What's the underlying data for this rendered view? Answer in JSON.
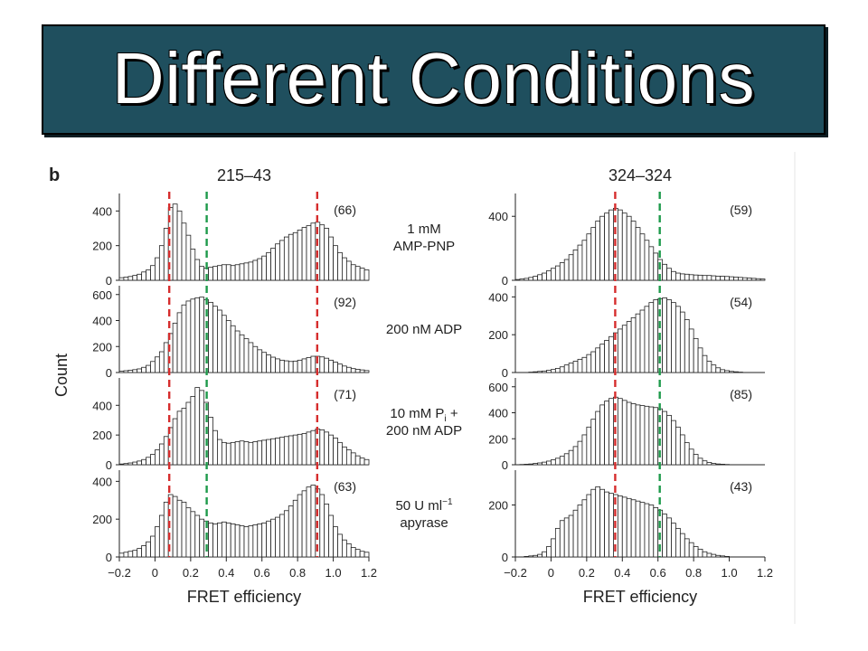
{
  "slide": {
    "title": "Different Conditions"
  },
  "chart_data": {
    "type": "bar",
    "panel_letter": "b",
    "xlabel": "FRET efficiency",
    "ylabel": "Count",
    "x_ticks": [
      "−0.2",
      "0",
      "0.2",
      "0.4",
      "0.6",
      "0.8",
      "1.0",
      "1.2"
    ],
    "xlim": [
      -0.2,
      1.2
    ],
    "bin_width": 0.025,
    "colors": {
      "bars_fill": "#ffffff",
      "bars_stroke": "#222222",
      "red_line": "#d62d2d",
      "green_line": "#1e9a4b",
      "banner": "#1f4f5e"
    },
    "conditions": [
      {
        "line1": "1 mM",
        "line2": "AMP-PNP",
        "sub": ""
      },
      {
        "line1": "200 nM ADP",
        "line2": "",
        "sub": ""
      },
      {
        "line1": "10 mM P",
        "sub": "i",
        "line1_suffix": " +",
        "line2": "200 nM ADP"
      },
      {
        "line1": "50 U ml",
        "sup": "−1",
        "line2": "apyrase",
        "sub": ""
      }
    ],
    "columns": [
      {
        "title": "215–43",
        "red_lines": [
          0.08,
          0.91
        ],
        "green_lines": [
          0.29
        ],
        "panels": [
          {
            "count_label": "(66)",
            "ylim": [
              0,
              480
            ],
            "y_ticks": [
              {
                "v": 0,
                "t": "0"
              },
              {
                "v": 200,
                "t": "200"
              },
              {
                "v": 400,
                "t": "400"
              }
            ],
            "values": [
              15,
              18,
              22,
              28,
              35,
              48,
              60,
              85,
              130,
              200,
              300,
              420,
              440,
              400,
              330,
              260,
              180,
              120,
              80,
              70,
              75,
              80,
              85,
              90,
              90,
              85,
              90,
              95,
              100,
              105,
              115,
              125,
              140,
              160,
              185,
              210,
              230,
              250,
              265,
              275,
              290,
              305,
              315,
              330,
              335,
              320,
              300,
              250,
              200,
              160,
              130,
              110,
              90,
              80,
              70,
              60
            ]
          },
          {
            "count_label": "(92)",
            "ylim": [
              0,
              640
            ],
            "y_ticks": [
              {
                "v": 0,
                "t": "0"
              },
              {
                "v": 200,
                "t": "200"
              },
              {
                "v": 400,
                "t": "400"
              },
              {
                "v": 600,
                "t": "600"
              }
            ],
            "values": [
              10,
              14,
              18,
              22,
              28,
              40,
              55,
              85,
              120,
              160,
              230,
              300,
              380,
              460,
              520,
              550,
              565,
              575,
              580,
              560,
              540,
              510,
              480,
              440,
              400,
              360,
              320,
              290,
              260,
              230,
              200,
              175,
              155,
              135,
              118,
              105,
              95,
              90,
              85,
              88,
              95,
              105,
              115,
              125,
              125,
              120,
              110,
              95,
              80,
              65,
              50,
              40,
              30,
              25,
              20,
              15
            ]
          },
          {
            "count_label": "(71)",
            "ylim": [
              0,
              560
            ],
            "y_ticks": [
              {
                "v": 0,
                "t": "0"
              },
              {
                "v": 200,
                "t": "200"
              },
              {
                "v": 400,
                "t": "400"
              }
            ],
            "values": [
              5,
              8,
              12,
              18,
              25,
              35,
              50,
              70,
              100,
              140,
              190,
              250,
              310,
              360,
              380,
              420,
              460,
              520,
              500,
              420,
              320,
              230,
              170,
              150,
              145,
              150,
              155,
              160,
              155,
              150,
              155,
              160,
              165,
              170,
              175,
              180,
              185,
              190,
              195,
              200,
              205,
              210,
              220,
              230,
              240,
              235,
              220,
              200,
              180,
              150,
              120,
              100,
              80,
              60,
              45,
              35
            ]
          },
          {
            "count_label": "(63)",
            "ylim": [
              0,
              440
            ],
            "y_ticks": [
              {
                "v": 0,
                "t": "0"
              },
              {
                "v": 200,
                "t": "200"
              },
              {
                "v": 400,
                "t": "400"
              }
            ],
            "values": [
              20,
              25,
              30,
              35,
              45,
              60,
              80,
              110,
              160,
              220,
              290,
              330,
              320,
              300,
              290,
              260,
              240,
              220,
              200,
              190,
              180,
              175,
              180,
              185,
              180,
              175,
              170,
              165,
              160,
              165,
              170,
              175,
              180,
              190,
              200,
              210,
              225,
              245,
              270,
              300,
              330,
              350,
              370,
              380,
              360,
              330,
              280,
              220,
              160,
              120,
              90,
              70,
              50,
              40,
              30,
              25
            ]
          }
        ]
      },
      {
        "title": "324–324",
        "red_lines": [
          0.36
        ],
        "green_lines": [
          0.61
        ],
        "panels": [
          {
            "count_label": "(59)",
            "ylim": [
              0,
              520
            ],
            "y_ticks": [
              {
                "v": 0,
                "t": "0"
              },
              {
                "v": 400,
                "t": "400"
              }
            ],
            "values": [
              5,
              8,
              12,
              18,
              25,
              35,
              45,
              60,
              75,
              90,
              110,
              130,
              160,
              190,
              220,
              250,
              290,
              330,
              370,
              400,
              420,
              440,
              450,
              440,
              420,
              400,
              370,
              330,
              290,
              250,
              210,
              170,
              130,
              100,
              75,
              55,
              45,
              40,
              38,
              35,
              33,
              32,
              30,
              30,
              28,
              26,
              25,
              24,
              22,
              20,
              18,
              16,
              14,
              12,
              10,
              8
            ]
          },
          {
            "count_label": "(54)",
            "ylim": [
              0,
              440
            ],
            "y_ticks": [
              {
                "v": 0,
                "t": "0"
              },
              {
                "v": 200,
                "t": "200"
              },
              {
                "v": 400,
                "t": "400"
              }
            ],
            "values": [
              0,
              0,
              0,
              2,
              4,
              6,
              8,
              12,
              16,
              22,
              30,
              40,
              50,
              60,
              70,
              80,
              95,
              110,
              130,
              150,
              170,
              190,
              210,
              230,
              250,
              270,
              290,
              310,
              330,
              350,
              370,
              385,
              390,
              395,
              385,
              370,
              350,
              320,
              280,
              230,
              180,
              130,
              90,
              60,
              40,
              25,
              15,
              10,
              6,
              4,
              2,
              0,
              0,
              0,
              0,
              0
            ]
          },
          {
            "count_label": "(85)",
            "ylim": [
              0,
              640
            ],
            "y_ticks": [
              {
                "v": 0,
                "t": "0"
              },
              {
                "v": 200,
                "t": "200"
              },
              {
                "v": 400,
                "t": "400"
              },
              {
                "v": 600,
                "t": "600"
              }
            ],
            "values": [
              0,
              2,
              4,
              6,
              10,
              14,
              20,
              28,
              38,
              50,
              65,
              85,
              110,
              140,
              180,
              230,
              290,
              350,
              410,
              460,
              490,
              510,
              520,
              510,
              495,
              480,
              470,
              460,
              455,
              450,
              445,
              440,
              430,
              410,
              380,
              340,
              290,
              230,
              170,
              120,
              80,
              50,
              30,
              18,
              10,
              6,
              4,
              2,
              0,
              0,
              0,
              0,
              0,
              0,
              0,
              0
            ]
          },
          {
            "count_label": "(43)",
            "ylim": [
              0,
              320
            ],
            "y_ticks": [
              {
                "v": 0,
                "t": "0"
              },
              {
                "v": 200,
                "t": "200"
              }
            ],
            "values": [
              0,
              0,
              2,
              4,
              6,
              10,
              20,
              40,
              70,
              110,
              140,
              150,
              160,
              180,
              200,
              220,
              240,
              260,
              270,
              260,
              250,
              245,
              240,
              235,
              230,
              225,
              220,
              215,
              210,
              205,
              200,
              190,
              180,
              165,
              150,
              130,
              110,
              90,
              70,
              55,
              40,
              30,
              20,
              14,
              10,
              6,
              4,
              2,
              0,
              0,
              0,
              0,
              0,
              0,
              0,
              0
            ]
          }
        ]
      }
    ]
  }
}
